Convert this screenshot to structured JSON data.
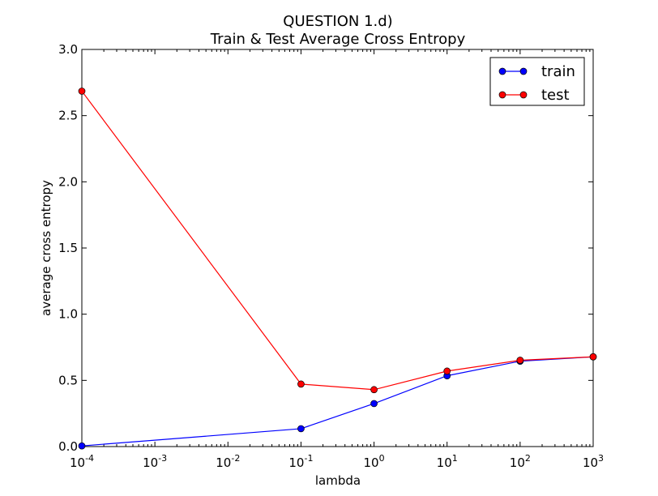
{
  "chart_data": {
    "type": "line",
    "title_line1": "QUESTION 1.d)",
    "title_line2": "Train & Test Average Cross Entropy",
    "xlabel": "lambda",
    "ylabel": "average cross entropy",
    "x_scale": "log",
    "x": [
      0.0001,
      0.1,
      1,
      10,
      100,
      1000
    ],
    "xlim": [
      0.0001,
      1000
    ],
    "ylim": [
      0,
      3.0
    ],
    "x_ticks": [
      {
        "value": 0.0001,
        "base": "10",
        "exp": "-4"
      },
      {
        "value": 0.001,
        "base": "10",
        "exp": "-3"
      },
      {
        "value": 0.01,
        "base": "10",
        "exp": "-2"
      },
      {
        "value": 0.1,
        "base": "10",
        "exp": "-1"
      },
      {
        "value": 1,
        "base": "10",
        "exp": "0"
      },
      {
        "value": 10,
        "base": "10",
        "exp": "1"
      },
      {
        "value": 100,
        "base": "10",
        "exp": "2"
      },
      {
        "value": 1000,
        "base": "10",
        "exp": "3"
      }
    ],
    "y_ticks": [
      {
        "value": 0.0,
        "label": "0.0"
      },
      {
        "value": 0.5,
        "label": "0.5"
      },
      {
        "value": 1.0,
        "label": "1.0"
      },
      {
        "value": 1.5,
        "label": "1.5"
      },
      {
        "value": 2.0,
        "label": "2.0"
      },
      {
        "value": 2.5,
        "label": "2.5"
      },
      {
        "value": 3.0,
        "label": "3.0"
      }
    ],
    "grid": false,
    "legend_position": "top-right",
    "series": [
      {
        "name": "train",
        "color": "#0000ff",
        "values": [
          0.005,
          0.135,
          0.325,
          0.535,
          0.645,
          0.678
        ]
      },
      {
        "name": "test",
        "color": "#ff0000",
        "values": [
          2.685,
          0.472,
          0.43,
          0.57,
          0.652,
          0.678
        ]
      }
    ]
  }
}
